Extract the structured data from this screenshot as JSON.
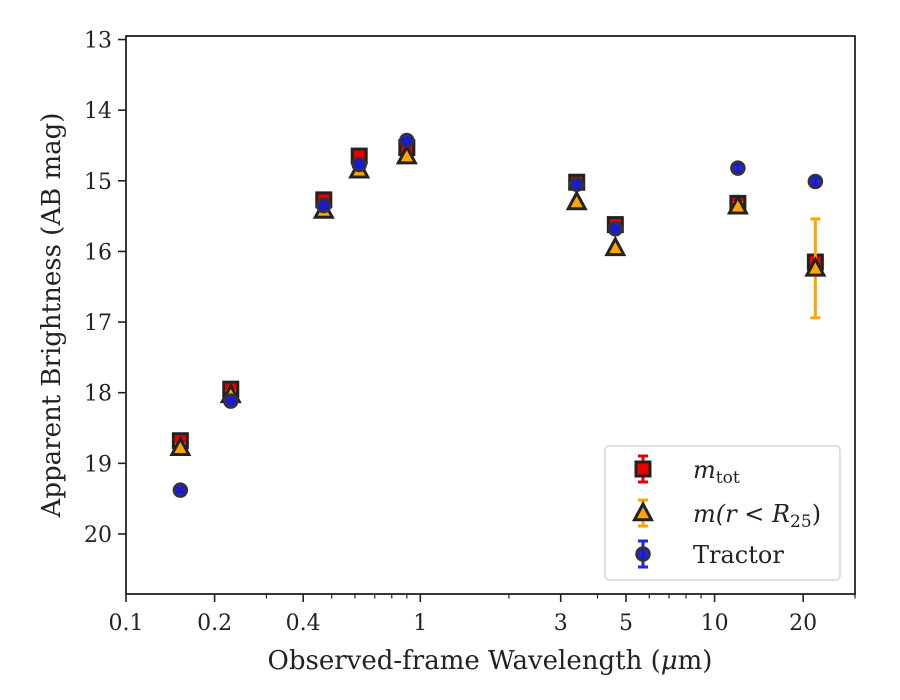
{
  "chart_data": {
    "type": "scatter",
    "xlabel_prefix": "Observed-frame Wavelength (",
    "xlabel_unit_symbol": "μ",
    "xlabel_suffix": "m)",
    "ylabel": "Apparent Brightness (AB mag)",
    "x_scale": "log",
    "xlim": [
      0.1,
      30
    ],
    "ylim": [
      20.85,
      12.95
    ],
    "y_inverted": true,
    "grid": false,
    "legend_position": "bottom-right",
    "x_ticks": [
      {
        "value": 0.1,
        "label": "0.1"
      },
      {
        "value": 0.2,
        "label": "0.2"
      },
      {
        "value": 0.4,
        "label": "0.4"
      },
      {
        "value": 1,
        "label": "1"
      },
      {
        "value": 3,
        "label": "3"
      },
      {
        "value": 5,
        "label": "5"
      },
      {
        "value": 10,
        "label": "10"
      },
      {
        "value": 20,
        "label": "20"
      }
    ],
    "y_ticks": [
      {
        "value": 13,
        "label": "13"
      },
      {
        "value": 14,
        "label": "14"
      },
      {
        "value": 15,
        "label": "15"
      },
      {
        "value": 16,
        "label": "16"
      },
      {
        "value": 17,
        "label": "17"
      },
      {
        "value": 18,
        "label": "18"
      },
      {
        "value": 19,
        "label": "19"
      },
      {
        "value": 20,
        "label": "20"
      }
    ],
    "series": [
      {
        "key": "mtot",
        "legend_math": "m",
        "legend_sub": "tot",
        "marker": "square",
        "fill": "#e60000",
        "edge": "#222222",
        "errcolor": "#e60000",
        "x": [
          0.153,
          0.227,
          0.47,
          0.62,
          0.9,
          3.4,
          4.6,
          12.0,
          22.0
        ],
        "y": [
          18.68,
          17.95,
          15.27,
          14.65,
          14.53,
          15.02,
          15.62,
          15.32,
          16.15
        ],
        "yerr": [
          0.05,
          0.05,
          0.03,
          0.03,
          0.03,
          0.03,
          0.03,
          0.05,
          0.08
        ]
      },
      {
        "key": "mr25",
        "legend_math": "m",
        "legend_text": "(r < R",
        "legend_sub": "25",
        "legend_close": ")",
        "marker": "triangle",
        "fill": "#ffa500",
        "edge": "#222222",
        "errcolor": "#ffa500",
        "x": [
          0.153,
          0.227,
          0.47,
          0.62,
          0.9,
          3.4,
          4.6,
          12.0,
          22.0
        ],
        "y": [
          18.78,
          18.03,
          15.42,
          14.85,
          14.65,
          15.3,
          15.95,
          15.36,
          16.24
        ],
        "yerr": [
          0.05,
          0.05,
          0.03,
          0.03,
          0.03,
          0.03,
          0.03,
          0.05,
          0.7
        ]
      },
      {
        "key": "tractor",
        "legend_label": "Tractor",
        "marker": "circle",
        "fill": "#1a1acc",
        "edge": "#333333",
        "errcolor": "#2222ee",
        "x": [
          0.153,
          0.227,
          0.47,
          0.62,
          0.9,
          3.4,
          4.6,
          12.0,
          22.0
        ],
        "y": [
          19.38,
          18.12,
          15.35,
          14.77,
          14.43,
          15.05,
          15.68,
          14.82,
          15.01
        ],
        "yerr": [
          0.03,
          0.03,
          0.03,
          0.03,
          0.03,
          0.03,
          0.03,
          0.05,
          0.05
        ]
      }
    ]
  }
}
